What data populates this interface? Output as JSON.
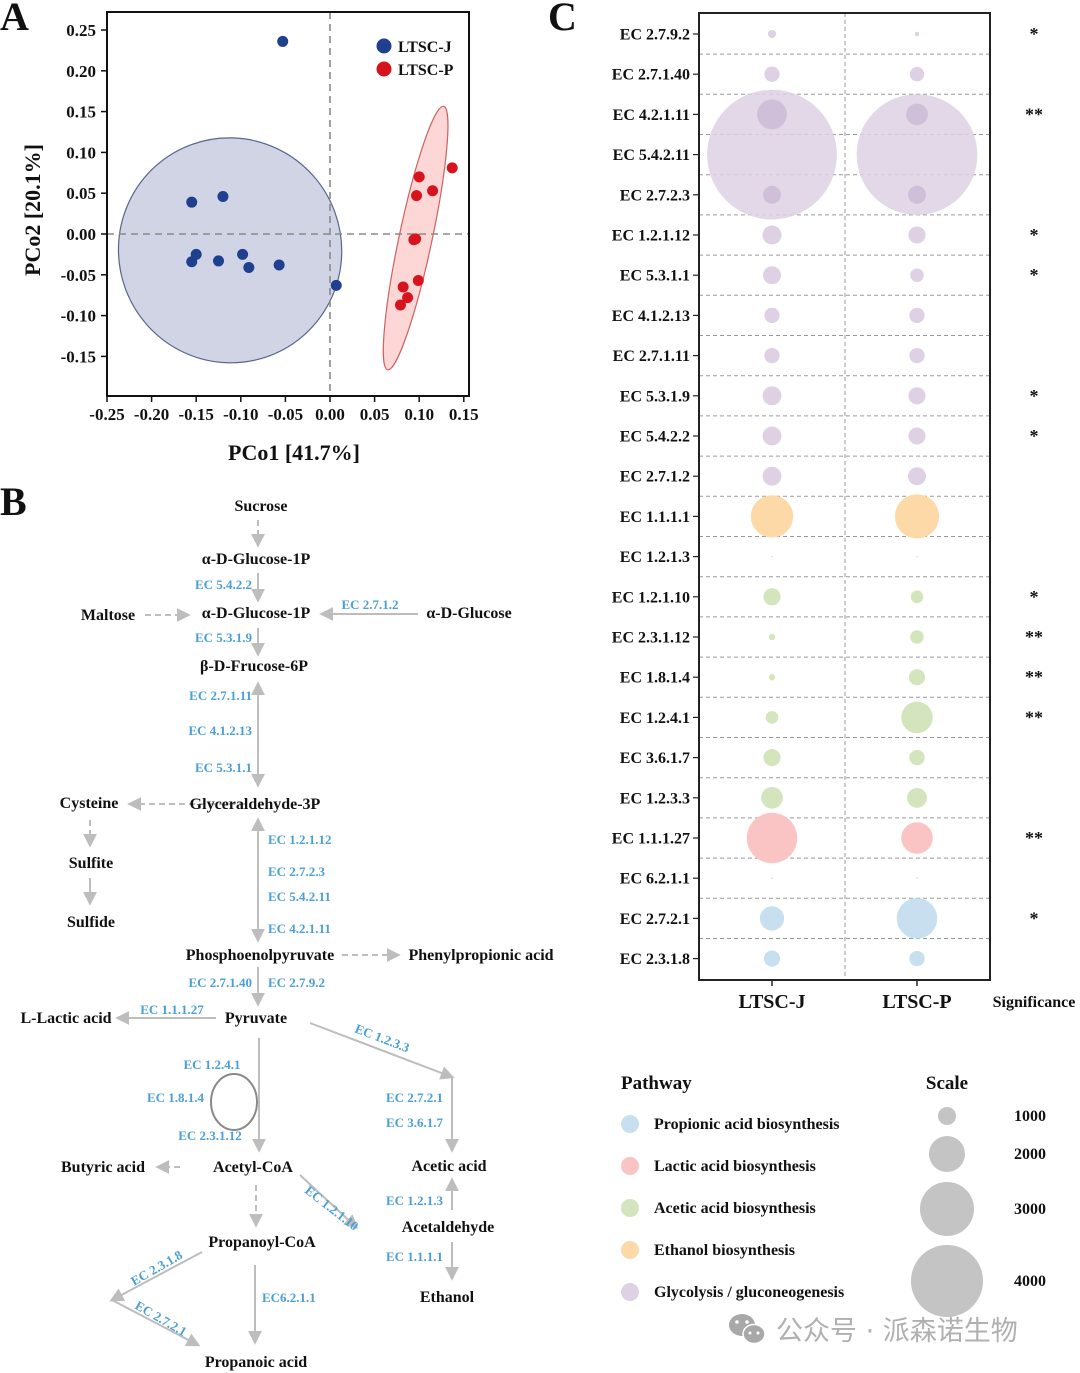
{
  "figure": {
    "panel_labels": [
      "A",
      "B",
      "C"
    ],
    "watermark": "公众号 · 派森诺生物",
    "watermark_icon": "wechat-icon"
  },
  "chart_data": [
    {
      "panel": "A",
      "type": "scatter",
      "title": "",
      "xlabel": "PCo1 [41.7%]",
      "ylabel": "PCo2 [20.1%]",
      "xlim": [
        -0.25,
        0.16
      ],
      "ylim": [
        -0.2,
        0.27
      ],
      "xticks": [
        "-0.25",
        "-0.20",
        "-0.15",
        "-0.10",
        "-0.05",
        "0.00",
        "0.05",
        "0.10",
        "0.15"
      ],
      "xtick_values": [
        -0.25,
        -0.2,
        -0.15,
        -0.1,
        -0.05,
        0.0,
        0.05,
        0.1,
        0.15
      ],
      "yticks": [
        "0.25",
        "0.20",
        "0.15",
        "0.10",
        "0.05",
        "0.00",
        "-0.05",
        "-0.10",
        "-0.15"
      ],
      "ytick_values": [
        0.25,
        0.2,
        0.15,
        0.1,
        0.05,
        0.0,
        -0.05,
        -0.1,
        -0.15
      ],
      "reference_lines": {
        "x": 0,
        "y": 0,
        "style": "dashed"
      },
      "grid": false,
      "legend_position": "top-right",
      "series": [
        {
          "name": "LTSC-J",
          "color": "#1f3f8f",
          "ellipse_fill": "#c9cde0",
          "ellipse_stroke": "#5a6490",
          "ellipse": {
            "cx": -0.112,
            "cy": -0.02,
            "rx": 0.125,
            "ry": 0.138,
            "rotation_deg": -20
          },
          "points": [
            {
              "x": -0.053,
              "y": 0.236
            },
            {
              "x": -0.155,
              "y": 0.039
            },
            {
              "x": -0.12,
              "y": 0.046
            },
            {
              "x": -0.15,
              "y": -0.025
            },
            {
              "x": -0.155,
              "y": -0.034
            },
            {
              "x": -0.125,
              "y": -0.033
            },
            {
              "x": -0.098,
              "y": -0.025
            },
            {
              "x": -0.091,
              "y": -0.041
            },
            {
              "x": -0.057,
              "y": -0.038
            },
            {
              "x": 0.007,
              "y": -0.063
            }
          ]
        },
        {
          "name": "LTSC-P",
          "color": "#d7141e",
          "ellipse_fill": "#fbd0cf",
          "ellipse_stroke": "#d06060",
          "ellipse": {
            "cx": 0.096,
            "cy": -0.005,
            "rx": 0.0185,
            "ry": 0.165,
            "rotation_deg": 12
          },
          "points": [
            {
              "x": 0.137,
              "y": 0.081
            },
            {
              "x": 0.1,
              "y": 0.07
            },
            {
              "x": 0.115,
              "y": 0.053
            },
            {
              "x": 0.097,
              "y": 0.047
            },
            {
              "x": 0.096,
              "y": -0.006
            },
            {
              "x": 0.094,
              "y": -0.007
            },
            {
              "x": 0.099,
              "y": -0.057
            },
            {
              "x": 0.082,
              "y": -0.065
            },
            {
              "x": 0.087,
              "y": -0.078
            },
            {
              "x": 0.079,
              "y": -0.087
            }
          ]
        }
      ]
    },
    {
      "panel": "C",
      "type": "bubble",
      "title": "",
      "groups": [
        "LTSC-J",
        "LTSC-P"
      ],
      "significance_header": "Significance",
      "enzymes": [
        {
          "ec": "EC 2.7.9.2",
          "pathway": "glycolysis",
          "values": [
            450,
            250
          ],
          "sig": "*"
        },
        {
          "ec": "EC 2.7.1.40",
          "pathway": "glycolysis",
          "values": [
            850,
            800
          ],
          "sig": ""
        },
        {
          "ec": "EC 4.2.1.11",
          "pathway": "glycolysis",
          "values": [
            1650,
            1200
          ],
          "sig": "**"
        },
        {
          "ec": "EC 5.4.2.11",
          "pathway": "glycolysis",
          "values": [
            7200,
            6700
          ],
          "sig": ""
        },
        {
          "ec": "EC 2.7.2.3",
          "pathway": "glycolysis",
          "values": [
            1000,
            1000
          ],
          "sig": ""
        },
        {
          "ec": "EC 1.2.1.12",
          "pathway": "glycolysis",
          "values": [
            1050,
            950
          ],
          "sig": "*"
        },
        {
          "ec": "EC 5.3.1.1",
          "pathway": "glycolysis",
          "values": [
            1000,
            750
          ],
          "sig": "*"
        },
        {
          "ec": "EC 4.1.2.13",
          "pathway": "glycolysis",
          "values": [
            850,
            850
          ],
          "sig": ""
        },
        {
          "ec": "EC 2.7.1.11",
          "pathway": "glycolysis",
          "values": [
            850,
            850
          ],
          "sig": ""
        },
        {
          "ec": "EC 5.3.1.9",
          "pathway": "glycolysis",
          "values": [
            1050,
            950
          ],
          "sig": "*"
        },
        {
          "ec": "EC 5.4.2.2",
          "pathway": "glycolysis",
          "values": [
            1050,
            950
          ],
          "sig": "*"
        },
        {
          "ec": "EC 2.7.1.2",
          "pathway": "glycolysis",
          "values": [
            1050,
            1000
          ],
          "sig": ""
        },
        {
          "ec": "EC 1.1.1.1",
          "pathway": "ethanol",
          "values": [
            2350,
            2450
          ],
          "sig": ""
        },
        {
          "ec": "EC 1.2.1.3",
          "pathway": "acetic",
          "values": [
            60,
            60
          ],
          "sig": ""
        },
        {
          "ec": "EC 1.2.1.10",
          "pathway": "acetic",
          "values": [
            950,
            700
          ],
          "sig": "*"
        },
        {
          "ec": "EC 2.3.1.12",
          "pathway": "acetic",
          "values": [
            350,
            750
          ],
          "sig": "**"
        },
        {
          "ec": "EC 1.8.1.4",
          "pathway": "acetic",
          "values": [
            350,
            900
          ],
          "sig": "**"
        },
        {
          "ec": "EC 1.2.4.1",
          "pathway": "acetic",
          "values": [
            700,
            1750
          ],
          "sig": "**"
        },
        {
          "ec": "EC 3.6.1.7",
          "pathway": "acetic",
          "values": [
            950,
            850
          ],
          "sig": ""
        },
        {
          "ec": "EC 1.2.3.3",
          "pathway": "acetic",
          "values": [
            1200,
            1100
          ],
          "sig": ""
        },
        {
          "ec": "EC 1.1.1.27",
          "pathway": "lactic",
          "values": [
            2800,
            1750
          ],
          "sig": "**"
        },
        {
          "ec": "EC 6.2.1.1",
          "pathway": "acetic",
          "values": [
            40,
            40
          ],
          "sig": ""
        },
        {
          "ec": "EC 2.7.2.1",
          "pathway": "propionic",
          "values": [
            1350,
            2250
          ],
          "sig": "*"
        },
        {
          "ec": "EC 2.3.1.8",
          "pathway": "propionic",
          "values": [
            900,
            850
          ],
          "sig": ""
        }
      ],
      "pathway_legend": {
        "title": "Pathway",
        "items": [
          {
            "key": "propionic",
            "label": "Propionic acid biosynthesis",
            "color": "#c8dff0"
          },
          {
            "key": "lactic",
            "label": "Lactic acid biosynthesis",
            "color": "#fbc4c4"
          },
          {
            "key": "acetic",
            "label": "Acetic acid biosynthesis",
            "color": "#d4e4bc"
          },
          {
            "key": "ethanol",
            "label": "Ethanol biosynthesis",
            "color": "#fdd9a8"
          },
          {
            "key": "glycolysis",
            "label": "Glycolysis / gluconeogenesis",
            "color": "#ddd1e3"
          }
        ]
      },
      "scale_legend": {
        "title": "Scale",
        "values": [
          1000,
          2000,
          3000,
          4000
        ],
        "labels": [
          "1000",
          "2000",
          "3000",
          "4000"
        ],
        "color": "#c4c4c4"
      }
    }
  ],
  "pathway_diagram": {
    "panel": "B",
    "nodes": {
      "sucrose": "Sucrose",
      "glc1p_top": "α-D-Glucose-1P",
      "maltose": "Maltose",
      "glc1p": "α-D-Glucose-1P",
      "glucose": "α-D-Glucose",
      "f6p": "β-D-Frucose-6P",
      "cysteine": "Cysteine",
      "g3p": "Glyceraldehyde-3P",
      "sulfite": "Sulfite",
      "sulfide": "Sulfide",
      "pep": "Phosphoenolpyruvate",
      "phenylpropionic": "Phenylpropionic acid",
      "lactic": "L-Lactic acid",
      "pyruvate": "Pyruvate",
      "butyric": "Butyric acid",
      "acetylcoa": "Acetyl-CoA",
      "acetic": "Acetic acid",
      "acetaldehyde": "Acetaldehyde",
      "propanoylcoa": "Propanoyl-CoA",
      "ethanol": "Ethanol",
      "propanoic": "Propanoic acid"
    },
    "enzymes": {
      "e5422": "EC 5.4.2.2",
      "e2712": "EC 2.7.1.2",
      "e5319": "EC 5.3.1.9",
      "e27111": "EC 2.7.1.11",
      "e41213": "EC 4.1.2.13",
      "e5311": "EC 5.3.1.1",
      "e12112": "EC 1.2.1.12",
      "e2723": "EC 2.7.2.3",
      "e54211": "EC 5.4.2.11",
      "e42111": "EC 4.2.1.11",
      "e27140": "EC 2.7.1.40",
      "e2792": "EC 2.7.9.2",
      "e11127": "EC 1.1.1.27",
      "e1233": "EC 1.2.3.3",
      "e1241": "EC 1.2.4.1",
      "e1814": "EC 1.8.1.4",
      "e23112": "EC 2.3.1.12",
      "e2721a": "EC 2.7.2.1",
      "e3617": "EC 3.6.1.7",
      "e1213": "EC 1.2.1.3",
      "e12110": "EC 1.2.1.10",
      "e1111": "EC 1.1.1.1",
      "e2318": "EC 2.3.1.8",
      "e6211": "EC6.2.1.1",
      "e2721b": "EC 2.7.2.1"
    }
  }
}
